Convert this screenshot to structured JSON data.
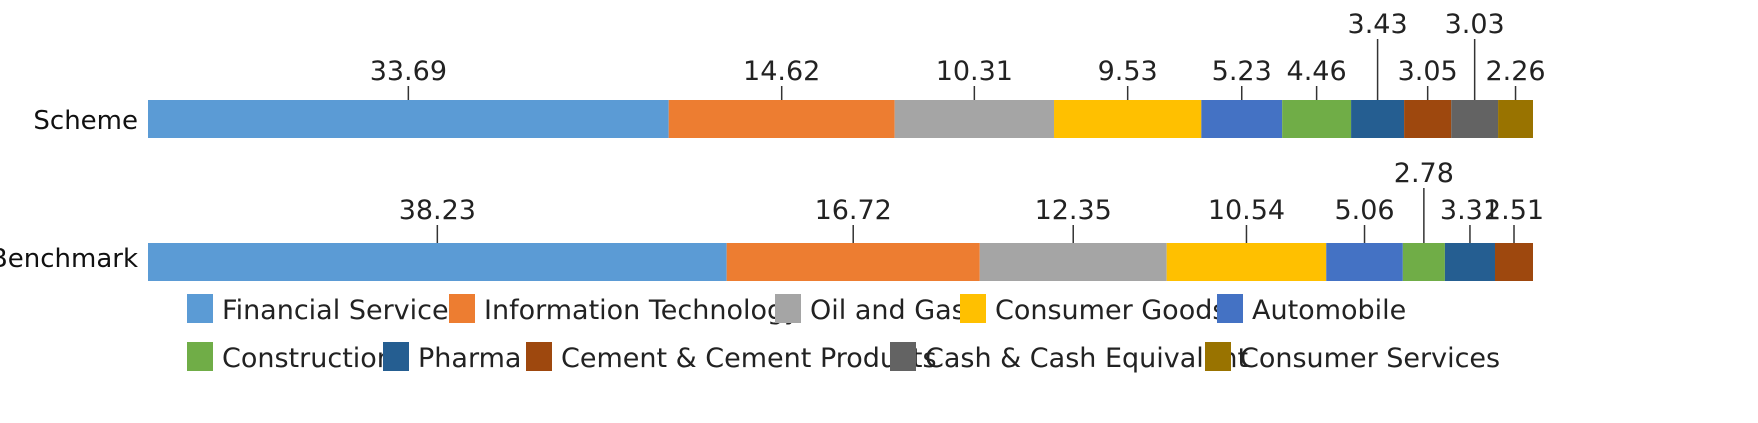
{
  "chart_data": {
    "type": "bar",
    "orientation": "horizontal",
    "stacked": true,
    "normalized": true,
    "categories": [
      "Scheme",
      "Benchmark"
    ],
    "series": [
      {
        "name": "Financial Services",
        "color": "#5B9BD5",
        "values": [
          33.69,
          38.23
        ]
      },
      {
        "name": "Information Technology",
        "color": "#ED7D31",
        "values": [
          14.62,
          16.72
        ]
      },
      {
        "name": "Oil and Gas",
        "color": "#A5A5A5",
        "values": [
          10.31,
          12.35
        ]
      },
      {
        "name": "Consumer Goods",
        "color": "#FFC000",
        "values": [
          9.53,
          10.54
        ]
      },
      {
        "name": "Automobile",
        "color": "#4472C4",
        "values": [
          5.23,
          5.06
        ]
      },
      {
        "name": "Construction",
        "color": "#70AD47",
        "values": [
          4.46,
          2.78
        ]
      },
      {
        "name": "Pharma",
        "color": "#255E91",
        "values": [
          3.43,
          3.31
        ]
      },
      {
        "name": "Cement & Cement Products",
        "color": "#9E480E",
        "values": [
          3.05,
          2.51
        ]
      },
      {
        "name": "Cash & Cash Equivalent",
        "color": "#636363",
        "values": [
          3.03,
          null
        ]
      },
      {
        "name": "Consumer Services",
        "color": "#997300",
        "values": [
          2.26,
          null
        ]
      }
    ],
    "grid": false,
    "legend_position": "bottom"
  }
}
